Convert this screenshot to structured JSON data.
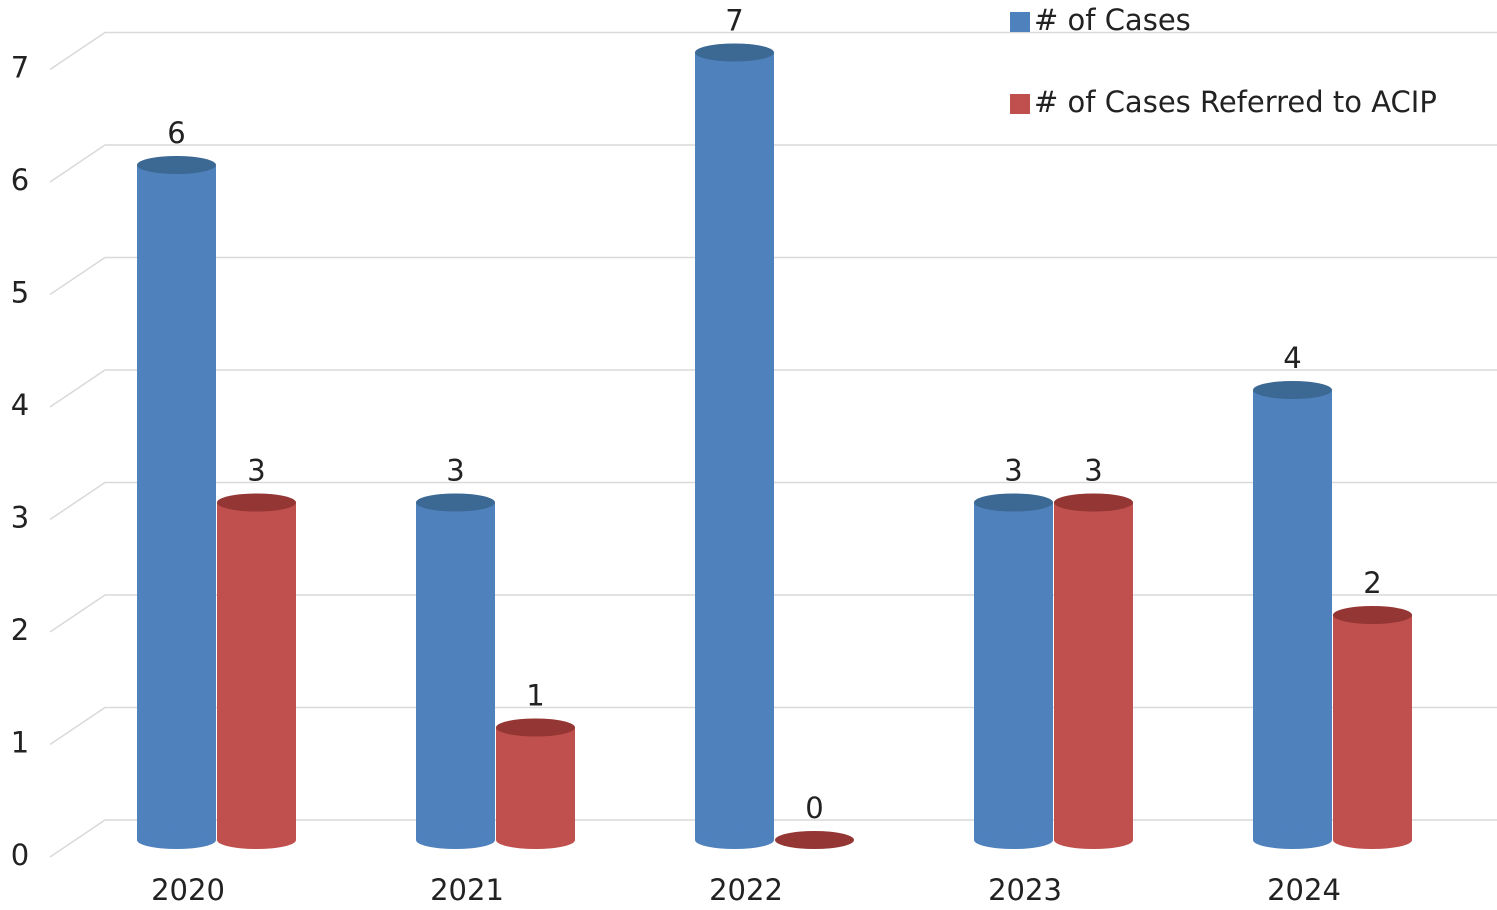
{
  "chart_data": {
    "type": "bar3d-cylinder",
    "categories": [
      "2020",
      "2021",
      "2022",
      "2023",
      "2024"
    ],
    "series": [
      {
        "name": "# of Cases",
        "color": "#4f81bd",
        "top_color": "#3c6894",
        "values": [
          6,
          3,
          7,
          3,
          4
        ]
      },
      {
        "name": "# of Cases Referred to ACIP",
        "color": "#c0504d",
        "top_color": "#943634",
        "values": [
          3,
          1,
          0,
          3,
          2
        ]
      }
    ],
    "ylim": [
      0,
      7
    ],
    "yticks": [
      0,
      1,
      2,
      3,
      4,
      5,
      6,
      7
    ],
    "grid": true,
    "legend": "top-right"
  }
}
